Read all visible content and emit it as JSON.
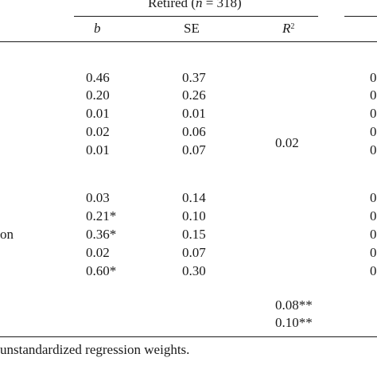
{
  "table": {
    "group_header": {
      "prefix": "Retired (",
      "n_symbol": "n",
      "suffix": " = 318)"
    },
    "columns": {
      "b": "b",
      "se": "SE",
      "r2_base": "R",
      "r2_sup": "2"
    },
    "row_label_fragment": "on",
    "block1": [
      {
        "b": "0.46",
        "se": "0.37",
        "right": "0"
      },
      {
        "b": "0.20",
        "se": "0.26",
        "right": "0"
      },
      {
        "b": "0.01",
        "se": "0.01",
        "right": "0"
      },
      {
        "b": "0.02",
        "se": "0.06",
        "right": "0"
      },
      {
        "b": "0.01",
        "se": "0.07",
        "right": "0"
      }
    ],
    "block1_r2": "0.02",
    "block2": [
      {
        "b": "0.03",
        "se": "0.14",
        "right": "0"
      },
      {
        "b": "0.21*",
        "se": "0.10",
        "right": "0"
      },
      {
        "b": "0.36*",
        "se": "0.15",
        "right": "0"
      },
      {
        "b": "0.02",
        "se": "0.07",
        "right": "0"
      },
      {
        "b": "0.60*",
        "se": "0.30",
        "right": "0"
      }
    ],
    "final_r2": [
      "0.08**",
      "0.10**"
    ],
    "footnote": "unstandardized regression weights."
  }
}
